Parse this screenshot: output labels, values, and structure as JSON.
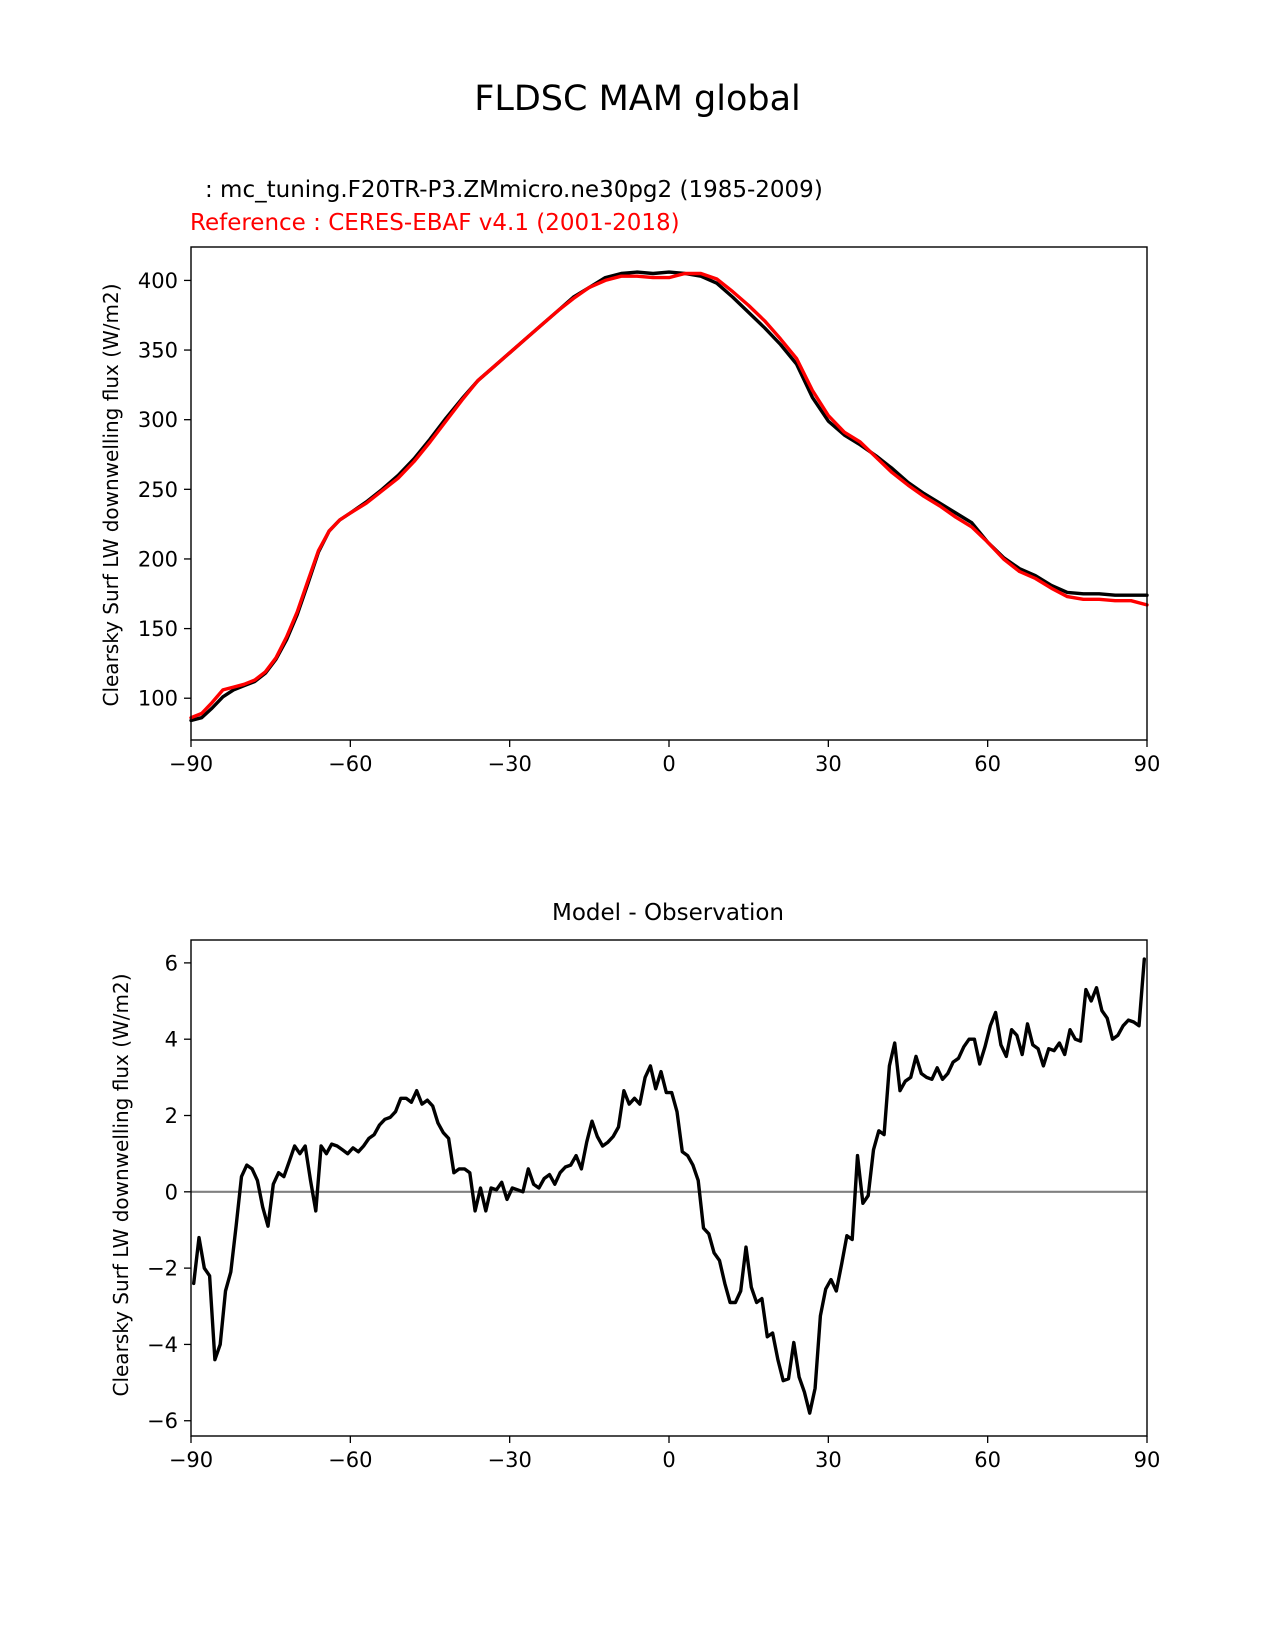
{
  "figure": {
    "title": "FLDSC MAM global"
  },
  "chart_data": [
    {
      "type": "line",
      "test_label": ": mc_tuning.F20TR-P3.ZMmicro.ne30pg2 (1985-2009)",
      "reference_label": "Reference : CERES-EBAF v4.1 (2001-2018)",
      "xlabel": "",
      "ylabel": "Clearsky Surf LW downwelling flux (W/m2)",
      "xlim": [
        -90,
        90
      ],
      "ylim": [
        70,
        424
      ],
      "xticks": [
        -90,
        -60,
        -30,
        0,
        30,
        60,
        90
      ],
      "xtick_labels": [
        "−90",
        "−60",
        "−30",
        "0",
        "30",
        "60",
        "90"
      ],
      "yticks": [
        100,
        150,
        200,
        250,
        300,
        350,
        400
      ],
      "ytick_labels": [
        "100",
        "150",
        "200",
        "250",
        "300",
        "350",
        "400"
      ],
      "series": [
        {
          "color": "#000000",
          "x": [
            -90,
            -88,
            -86,
            -84,
            -82,
            -80,
            -78,
            -76,
            -74,
            -72,
            -70,
            -68,
            -66,
            -64,
            -62,
            -60,
            -57,
            -54,
            -51,
            -48,
            -45,
            -42,
            -39,
            -36,
            -33,
            -30,
            -27,
            -24,
            -21,
            -18,
            -15,
            -12,
            -9,
            -6,
            -3,
            0,
            3,
            6,
            9,
            12,
            15,
            18,
            21,
            24,
            27,
            30,
            33,
            36,
            39,
            42,
            45,
            48,
            51,
            54,
            57,
            60,
            63,
            66,
            69,
            72,
            75,
            78,
            81,
            84,
            87,
            90
          ],
          "y": [
            84,
            86,
            93,
            101,
            106,
            109,
            112,
            118,
            128,
            142,
            160,
            182,
            205,
            220,
            228,
            233,
            241,
            250,
            260,
            272,
            286,
            301,
            315,
            328,
            338,
            348,
            358,
            368,
            378,
            388,
            395,
            402,
            405,
            406,
            405,
            406,
            405,
            403,
            398,
            388,
            377,
            366,
            354,
            340,
            316,
            299,
            289,
            282,
            274,
            265,
            255,
            247,
            240,
            233,
            226,
            212,
            201,
            193,
            188,
            181,
            176,
            175,
            175,
            174,
            174,
            174
          ]
        },
        {
          "color": "#ff0000",
          "x": [
            -90,
            -88,
            -86,
            -84,
            -82,
            -80,
            -78,
            -76,
            -74,
            -72,
            -70,
            -68,
            -66,
            -64,
            -62,
            -60,
            -57,
            -54,
            -51,
            -48,
            -45,
            -42,
            -39,
            -36,
            -33,
            -30,
            -27,
            -24,
            -21,
            -18,
            -15,
            -12,
            -9,
            -6,
            -3,
            0,
            3,
            6,
            9,
            12,
            15,
            18,
            21,
            24,
            27,
            30,
            33,
            36,
            39,
            42,
            45,
            48,
            51,
            54,
            57,
            60,
            63,
            66,
            69,
            72,
            75,
            78,
            81,
            84,
            87,
            90
          ],
          "y": [
            86,
            89,
            97,
            106,
            108,
            110,
            113,
            119,
            129,
            144,
            162,
            184,
            206,
            220,
            228,
            233,
            240,
            249,
            258,
            270,
            284,
            299,
            314,
            328,
            338,
            348,
            358,
            368,
            378,
            387,
            395,
            400,
            403,
            403,
            402,
            402,
            405,
            405,
            401,
            392,
            382,
            371,
            358,
            344,
            321,
            303,
            291,
            284,
            273,
            262,
            253,
            245,
            238,
            230,
            223,
            212,
            200,
            191,
            186,
            179,
            173,
            171,
            171,
            170,
            170,
            167
          ]
        }
      ]
    },
    {
      "type": "line",
      "title": "Model - Observation",
      "xlabel": "",
      "ylabel": "Clearsky Surf LW downwelling flux (W/m2)",
      "xlim": [
        -90,
        90
      ],
      "ylim": [
        -6.4,
        6.6
      ],
      "xticks": [
        -90,
        -60,
        -30,
        0,
        30,
        60,
        90
      ],
      "xtick_labels": [
        "−90",
        "−60",
        "−30",
        "0",
        "30",
        "60",
        "90"
      ],
      "yticks": [
        -6,
        -4,
        -2,
        0,
        2,
        4,
        6
      ],
      "ytick_labels": [
        "−6",
        "−4",
        "−2",
        "0",
        "2",
        "4",
        "6"
      ],
      "zero_line_color": "#808080",
      "series": [
        {
          "color": "#000000",
          "x": [
            -89.5,
            -88.5,
            -87.5,
            -86.5,
            -85.5,
            -84.5,
            -83.5,
            -82.5,
            -81.5,
            -80.5,
            -79.5,
            -78.5,
            -77.5,
            -76.5,
            -75.5,
            -74.5,
            -73.5,
            -72.5,
            -71.5,
            -70.5,
            -69.5,
            -68.5,
            -67.5,
            -66.5,
            -65.5,
            -64.5,
            -63.5,
            -62.5,
            -61.5,
            -60.5,
            -59.5,
            -58.5,
            -57.5,
            -56.5,
            -55.5,
            -54.5,
            -53.5,
            -52.5,
            -51.5,
            -50.5,
            -49.5,
            -48.5,
            -47.5,
            -46.5,
            -45.5,
            -44.5,
            -43.5,
            -42.5,
            -41.5,
            -40.5,
            -39.5,
            -38.5,
            -37.5,
            -36.5,
            -35.5,
            -34.5,
            -33.5,
            -32.5,
            -31.5,
            -30.5,
            -29.5,
            -28.5,
            -27.5,
            -26.5,
            -25.5,
            -24.5,
            -23.5,
            -22.5,
            -21.5,
            -20.5,
            -19.5,
            -18.5,
            -17.5,
            -16.5,
            -15.5,
            -14.5,
            -13.5,
            -12.5,
            -11.5,
            -10.5,
            -9.5,
            -8.5,
            -7.5,
            -6.5,
            -5.5,
            -4.5,
            -3.5,
            -2.5,
            -1.5,
            -0.5,
            0.5,
            1.5,
            2.5,
            3.5,
            4.5,
            5.5,
            6.5,
            7.5,
            8.5,
            9.5,
            10.5,
            11.5,
            12.5,
            13.5,
            14.5,
            15.5,
            16.5,
            17.5,
            18.5,
            19.5,
            20.5,
            21.5,
            22.5,
            23.5,
            24.5,
            25.5,
            26.5,
            27.5,
            28.5,
            29.5,
            30.5,
            31.5,
            32.5,
            33.5,
            34.5,
            35.5,
            36.5,
            37.5,
            38.5,
            39.5,
            40.5,
            41.5,
            42.5,
            43.5,
            44.5,
            45.5,
            46.5,
            47.5,
            48.5,
            49.5,
            50.5,
            51.5,
            52.5,
            53.5,
            54.5,
            55.5,
            56.5,
            57.5,
            58.5,
            59.5,
            60.5,
            61.5,
            62.5,
            63.5,
            64.5,
            65.5,
            66.5,
            67.5,
            68.5,
            69.5,
            70.5,
            71.5,
            72.5,
            73.5,
            74.5,
            75.5,
            76.5,
            77.5,
            78.5,
            79.5,
            80.5,
            81.5,
            82.5,
            83.5,
            84.5,
            85.5,
            86.5,
            87.5,
            88.5,
            89.5
          ],
          "y": [
            -2.4,
            -1.2,
            -2.0,
            -2.2,
            -4.4,
            -4.0,
            -2.6,
            -2.1,
            -0.9,
            0.4,
            0.7,
            0.6,
            0.3,
            -0.4,
            -0.9,
            0.2,
            0.5,
            0.4,
            0.8,
            1.2,
            1.0,
            1.2,
            0.3,
            -0.5,
            1.2,
            1.0,
            1.25,
            1.2,
            1.1,
            1.0,
            1.15,
            1.05,
            1.2,
            1.4,
            1.5,
            1.75,
            1.9,
            1.95,
            2.1,
            2.45,
            2.45,
            2.35,
            2.65,
            2.3,
            2.4,
            2.25,
            1.8,
            1.55,
            1.4,
            0.5,
            0.6,
            0.6,
            0.5,
            -0.5,
            0.1,
            -0.5,
            0.1,
            0.05,
            0.25,
            -0.2,
            0.1,
            0.05,
            0.0,
            0.6,
            0.2,
            0.1,
            0.35,
            0.45,
            0.2,
            0.5,
            0.65,
            0.7,
            0.95,
            0.6,
            1.3,
            1.85,
            1.45,
            1.2,
            1.3,
            1.45,
            1.7,
            2.65,
            2.3,
            2.45,
            2.3,
            3.0,
            3.3,
            2.7,
            3.15,
            2.6,
            2.6,
            2.1,
            1.05,
            0.95,
            0.7,
            0.3,
            -0.95,
            -1.1,
            -1.6,
            -1.8,
            -2.4,
            -2.9,
            -2.9,
            -2.6,
            -1.45,
            -2.5,
            -2.9,
            -2.8,
            -3.8,
            -3.7,
            -4.4,
            -4.95,
            -4.9,
            -3.95,
            -4.85,
            -5.25,
            -5.8,
            -5.15,
            -3.25,
            -2.55,
            -2.3,
            -2.6,
            -1.9,
            -1.15,
            -1.25,
            0.95,
            -0.3,
            -0.1,
            1.1,
            1.6,
            1.5,
            3.3,
            3.9,
            2.65,
            2.9,
            3.0,
            3.55,
            3.1,
            3.0,
            2.95,
            3.25,
            2.95,
            3.1,
            3.4,
            3.5,
            3.8,
            4.0,
            4.0,
            3.35,
            3.8,
            4.35,
            4.7,
            3.85,
            3.55,
            4.25,
            4.1,
            3.6,
            4.4,
            3.85,
            3.75,
            3.3,
            3.75,
            3.7,
            3.9,
            3.6,
            4.25,
            4.0,
            3.95,
            5.3,
            5.0,
            5.35,
            4.75,
            4.55,
            4.0,
            4.1,
            4.35,
            4.5,
            4.45,
            4.35,
            6.1
          ]
        }
      ]
    }
  ]
}
